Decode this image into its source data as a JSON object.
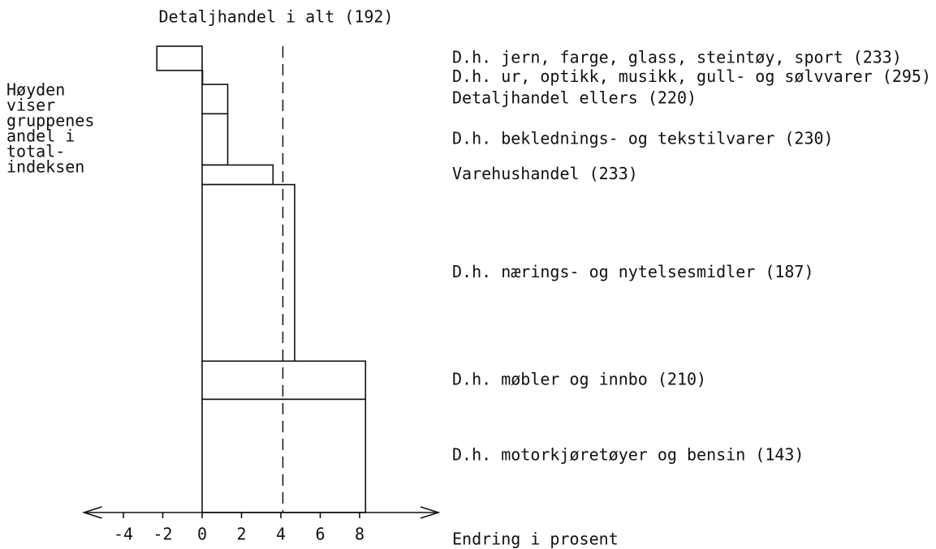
{
  "chart_data": {
    "type": "variable-width-bar",
    "title": "Detaljhandel i alt (192)",
    "y_note": [
      "Høyden",
      "viser",
      "gruppenes",
      "andel i",
      "total-",
      "indeksen"
    ],
    "xlabel": "Endring i prosent",
    "categories": [
      "D.h. jern, farge, glass, steintøy, sport (233)",
      "D.h. ur, optikk, musikk, gull- og sølvvarer (295)",
      "Detaljhandel ellers (220)",
      "D.h. beklednings- og tekstilvarer (230)",
      "Varehushandel (233)",
      "D.h. nærings- og nytelsesmidler (187)",
      "D.h. møbler og innbo (210)",
      "D.h. motorkjøretøyer og bensin (143)"
    ],
    "values": [
      -2.3,
      0,
      1.3,
      1.3,
      3.6,
      4.7,
      8.3,
      8.3
    ],
    "weights": [
      5.2,
      3.0,
      6.3,
      11.0,
      4.2,
      37.9,
      8.2,
      24.3
    ],
    "reference_line": 4.1,
    "xlim": [
      -6,
      12
    ],
    "xticks": [
      -4,
      -2,
      0,
      2,
      4,
      6,
      8
    ],
    "color": "#ffffff"
  }
}
